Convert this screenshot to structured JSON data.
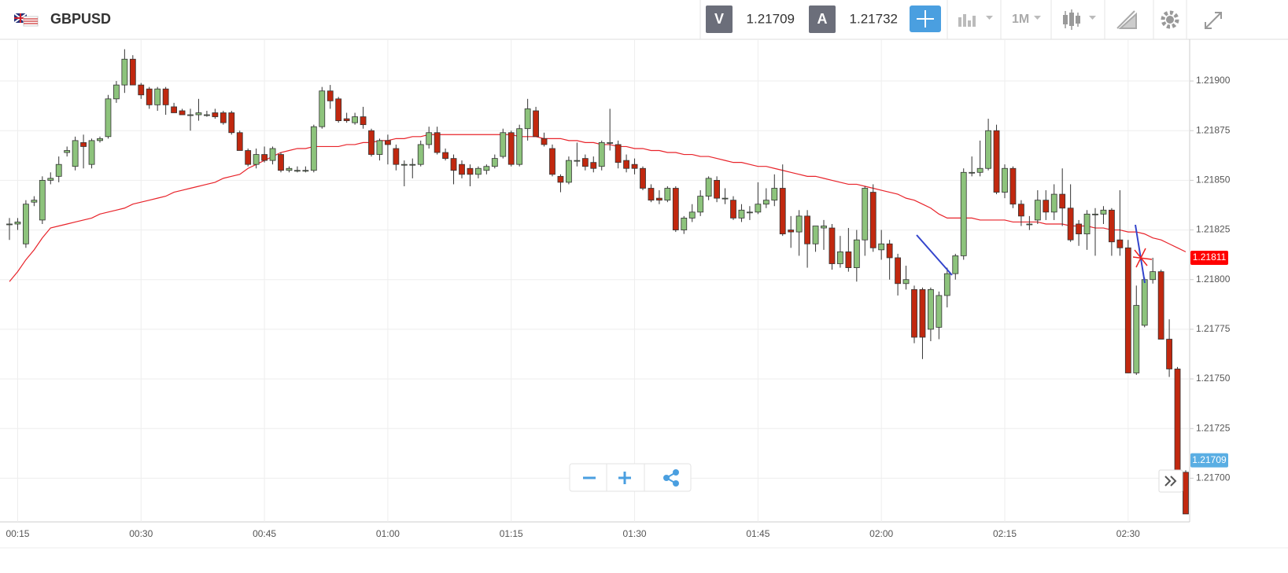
{
  "toolbar": {
    "symbol": "GBPUSD",
    "bid_label": "V",
    "bid": "1.21709",
    "ask_label": "A",
    "ask": "1.21732",
    "timeframe": "1M"
  },
  "chart_data": {
    "type": "candlestick",
    "categories": [
      null,
      "00:15",
      null,
      null,
      null,
      null,
      null,
      null,
      null,
      null,
      null,
      null,
      null,
      null,
      null,
      null,
      "00:30",
      null,
      null,
      null,
      null,
      null,
      null,
      null,
      null,
      null,
      null,
      null,
      null,
      null,
      null,
      "00:45",
      null,
      null,
      null,
      null,
      null,
      null,
      null,
      null,
      null,
      null,
      null,
      null,
      null,
      null,
      "01:00",
      null,
      null,
      null,
      null,
      null,
      null,
      null,
      null,
      null,
      null,
      null,
      null,
      null,
      null,
      "01:15",
      null,
      null,
      null,
      null,
      null,
      null,
      null,
      null,
      null,
      null,
      null,
      null,
      null,
      null,
      "01:30",
      null,
      null,
      null,
      null,
      null,
      null,
      null,
      null,
      null,
      null,
      null,
      null,
      null,
      null,
      "01:45",
      null,
      null,
      null,
      null,
      null,
      null,
      null,
      null,
      null,
      null,
      null,
      null,
      null,
      null,
      "02:00",
      null,
      null,
      null,
      null,
      null,
      null,
      null,
      null,
      null,
      null,
      null,
      null,
      null,
      null,
      "02:15",
      null,
      null,
      null,
      null,
      null,
      null,
      null,
      null,
      null,
      null,
      null,
      null,
      null,
      null,
      "02:30",
      null,
      null,
      null,
      null,
      null,
      null,
      null
    ],
    "open": [
      1.21828,
      1.21828,
      1.21818,
      1.21839,
      1.2183,
      1.2185,
      1.21852,
      1.21864,
      1.21857,
      1.21869,
      1.21858,
      1.2187,
      1.21872,
      1.21891,
      1.21898,
      1.21911,
      1.21898,
      1.21896,
      1.21888,
      1.21896,
      1.21887,
      1.21885,
      1.21883,
      1.21883,
      1.21883,
      1.21884,
      1.21884,
      1.21884,
      1.21874,
      1.21865,
      1.21858,
      1.21863,
      1.2186,
      1.21863,
      1.21855,
      1.21855,
      1.21855,
      1.21855,
      1.21877,
      1.21895,
      1.21891,
      1.21881,
      1.21879,
      1.21882,
      1.21875,
      1.21863,
      1.2187,
      1.21866,
      1.21858,
      1.21858,
      1.21858,
      1.21868,
      1.21874,
      1.21864,
      1.21861,
      1.21858,
      1.21856,
      1.21853,
      1.21855,
      1.21857,
      1.21862,
      1.21874,
      1.21858,
      1.21876,
      1.21885,
      1.21871,
      1.21866,
      1.21852,
      1.21849,
      1.2186,
      1.21861,
      1.21859,
      1.21857,
      1.21869,
      1.21868,
      1.2186,
      1.21858,
      1.21856,
      1.21846,
      1.21841,
      1.2184,
      1.21846,
      1.21825,
      1.21831,
      1.21834,
      1.21842,
      1.2185,
      1.21841,
      1.2184,
      1.21831,
      1.21834,
      1.21834,
      1.21838,
      1.2184,
      1.21846,
      1.21825,
      1.21824,
      1.21832,
      1.21818,
      1.21826,
      1.21826,
      1.21808,
      1.21814,
      1.21806,
      1.2182,
      1.21844,
      1.21815,
      1.21818,
      1.21811,
      1.21798,
      1.21795,
      1.21795,
      1.21775,
      1.21776,
      1.21792,
      1.21803,
      1.21812,
      1.21854,
      1.21854,
      1.21856,
      1.21875,
      1.21844,
      1.21856,
      1.21838,
      1.21828,
      1.2183,
      1.2184,
      1.21834,
      1.21843,
      1.21836,
      1.21828,
      1.21823,
      1.21833,
      1.21833,
      1.21835,
      1.2182,
      1.21816,
      1.21753,
      1.21777,
      1.218,
      1.21804,
      1.2177,
      1.21755,
      1.21703
    ],
    "high": [
      1.21831,
      1.21831,
      1.2184,
      1.21842,
      1.21852,
      1.21854,
      1.21862,
      1.21867,
      1.21872,
      1.21873,
      1.21871,
      1.21872,
      1.21893,
      1.219,
      1.21916,
      1.21913,
      1.21899,
      1.21897,
      1.21897,
      1.21897,
      1.21889,
      1.21886,
      1.21886,
      1.21891,
      1.21885,
      1.21886,
      1.21885,
      1.21885,
      1.21875,
      1.21866,
      1.21866,
      1.21867,
      1.21867,
      1.21864,
      1.21857,
      1.21857,
      1.21857,
      1.21878,
      1.21897,
      1.21898,
      1.21892,
      1.21884,
      1.21884,
      1.21887,
      1.21876,
      1.21871,
      1.21873,
      1.21868,
      1.2186,
      1.21861,
      1.2187,
      1.21877,
      1.21877,
      1.21866,
      1.21863,
      1.2186,
      1.21858,
      1.21857,
      1.21858,
      1.21863,
      1.21876,
      1.21875,
      1.21878,
      1.21891,
      1.21887,
      1.21874,
      1.21868,
      1.21853,
      1.21862,
      1.21869,
      1.21863,
      1.21862,
      1.2187,
      1.21886,
      1.2187,
      1.21863,
      1.21861,
      1.21857,
      1.21848,
      1.21845,
      1.21847,
      1.21847,
      1.21832,
      1.21838,
      1.21845,
      1.21852,
      1.21852,
      1.21846,
      1.21842,
      1.21838,
      1.21837,
      1.21849,
      1.21846,
      1.21853,
      1.21858,
      1.21832,
      1.21835,
      1.21835,
      1.21827,
      1.2183,
      1.21828,
      1.21822,
      1.21826,
      1.21825,
      1.21847,
      1.21848,
      1.21825,
      1.2182,
      1.21813,
      1.21807,
      1.21797,
      1.21796,
      1.21796,
      1.21794,
      1.21806,
      1.21813,
      1.21856,
      1.21862,
      1.2187,
      1.21881,
      1.21878,
      1.21858,
      1.21857,
      1.2184,
      1.21832,
      1.21845,
      1.21845,
      1.21848,
      1.21856,
      1.21848,
      1.2183,
      1.21835,
      1.21836,
      1.21837,
      1.21836,
      1.21845,
      1.2182,
      1.21797,
      1.21801,
      1.21811,
      1.21805,
      1.2178,
      1.21756,
      1.21704
    ],
    "low": [
      1.2182,
      1.21825,
      1.21816,
      1.21837,
      1.21828,
      1.21848,
      1.21849,
      1.21862,
      1.21855,
      1.21856,
      1.21856,
      1.21869,
      1.21871,
      1.21889,
      1.21894,
      1.21898,
      1.21891,
      1.21886,
      1.21885,
      1.21883,
      1.21884,
      1.21883,
      1.21875,
      1.2188,
      1.21882,
      1.21881,
      1.21878,
      1.21873,
      1.21865,
      1.21857,
      1.21856,
      1.21859,
      1.21858,
      1.21854,
      1.21854,
      1.21854,
      1.21854,
      1.21854,
      1.21876,
      1.21886,
      1.21879,
      1.21879,
      1.21878,
      1.21876,
      1.21862,
      1.2186,
      1.21858,
      1.21855,
      1.21847,
      1.21851,
      1.21857,
      1.21866,
      1.21863,
      1.2186,
      1.21848,
      1.21851,
      1.21847,
      1.21851,
      1.21853,
      1.21856,
      1.21861,
      1.21857,
      1.21857,
      1.2187,
      1.21872,
      1.21867,
      1.21852,
      1.21844,
      1.21848,
      1.21857,
      1.21855,
      1.21854,
      1.21855,
      1.21865,
      1.21856,
      1.21854,
      1.21853,
      1.21845,
      1.21839,
      1.21838,
      1.21839,
      1.21824,
      1.21823,
      1.21829,
      1.21832,
      1.2184,
      1.21839,
      1.21838,
      1.2183,
      1.21829,
      1.2183,
      1.21833,
      1.21836,
      1.21837,
      1.21822,
      1.21816,
      1.21812,
      1.21806,
      1.21814,
      1.21815,
      1.21805,
      1.21806,
      1.21804,
      1.21799,
      1.21812,
      1.21814,
      1.2181,
      1.218,
      1.21792,
      1.21795,
      1.21768,
      1.2176,
      1.21769,
      1.2177,
      1.21786,
      1.218,
      1.2181,
      1.21852,
      1.21852,
      1.21855,
      1.21843,
      1.21841,
      1.21836,
      1.21827,
      1.21825,
      1.21828,
      1.2183,
      1.2183,
      1.21827,
      1.21819,
      1.21817,
      1.21815,
      1.21812,
      1.21828,
      1.21812,
      1.21812,
      1.21753,
      1.21752,
      1.21776,
      1.21798,
      1.2177,
      1.21751,
      1.21703,
      1.21682
    ],
    "close": [
      1.21828,
      1.21829,
      1.21838,
      1.2184,
      1.2185,
      1.21851,
      1.21858,
      1.21865,
      1.2187,
      1.21867,
      1.2187,
      1.21871,
      1.21891,
      1.21898,
      1.21911,
      1.21898,
      1.21893,
      1.21888,
      1.21896,
      1.21888,
      1.21884,
      1.21883,
      1.21883,
      1.21884,
      1.21883,
      1.21882,
      1.21879,
      1.21874,
      1.21865,
      1.21858,
      1.21863,
      1.2186,
      1.21866,
      1.21855,
      1.21856,
      1.21855,
      1.21855,
      1.21877,
      1.21895,
      1.2189,
      1.2188,
      1.2188,
      1.21882,
      1.21878,
      1.21863,
      1.2187,
      1.21868,
      1.21858,
      1.21858,
      1.21858,
      1.21868,
      1.21874,
      1.21864,
      1.21861,
      1.21855,
      1.21853,
      1.21853,
      1.21856,
      1.21857,
      1.21861,
      1.21874,
      1.21858,
      1.21876,
      1.21886,
      1.21872,
      1.21868,
      1.21853,
      1.21849,
      1.2186,
      1.2186,
      1.21857,
      1.21856,
      1.21869,
      1.21869,
      1.21859,
      1.21856,
      1.21856,
      1.21846,
      1.2184,
      1.2184,
      1.21846,
      1.21825,
      1.21831,
      1.21834,
      1.21842,
      1.21851,
      1.21841,
      1.21841,
      1.21831,
      1.21835,
      1.21834,
      1.21838,
      1.2184,
      1.21846,
      1.21823,
      1.21824,
      1.21832,
      1.21818,
      1.21827,
      1.21827,
      1.21808,
      1.21814,
      1.21806,
      1.2182,
      1.21846,
      1.21816,
      1.21818,
      1.21811,
      1.21798,
      1.218,
      1.21771,
      1.21771,
      1.21795,
      1.21792,
      1.21803,
      1.21812,
      1.21854,
      1.21854,
      1.21856,
      1.21875,
      1.21844,
      1.21856,
      1.21838,
      1.21832,
      1.21828,
      1.2184,
      1.21834,
      1.21843,
      1.21836,
      1.2182,
      1.21823,
      1.21833,
      1.21833,
      1.21835,
      1.21819,
      1.21816,
      1.21753,
      1.21787,
      1.218,
      1.21804,
      1.2177,
      1.21755,
      1.21703,
      1.21682
    ],
    "up_color": "#8dc37c",
    "down_color": "#c1280f",
    "moving_average": {
      "color": "#e8232a",
      "values": [
        1.21799,
        1.21804,
        1.2181,
        1.21815,
        1.21821,
        1.21826,
        1.21827,
        1.21828,
        1.21829,
        1.2183,
        1.21831,
        1.21833,
        1.21834,
        1.21835,
        1.21836,
        1.21838,
        1.21839,
        1.2184,
        1.21841,
        1.21842,
        1.21844,
        1.21845,
        1.21846,
        1.21847,
        1.21848,
        1.21849,
        1.21851,
        1.21852,
        1.21853,
        1.21856,
        1.21858,
        1.2186,
        1.21862,
        1.21864,
        1.21865,
        1.21866,
        1.21866,
        1.21867,
        1.21867,
        1.21867,
        1.21867,
        1.21868,
        1.21868,
        1.21869,
        1.21869,
        1.2187,
        1.2187,
        1.21871,
        1.21871,
        1.21872,
        1.21872,
        1.21873,
        1.21873,
        1.21873,
        1.21873,
        1.21873,
        1.21873,
        1.21873,
        1.21873,
        1.21873,
        1.21873,
        1.21873,
        1.21872,
        1.21872,
        1.21872,
        1.21871,
        1.21871,
        1.21871,
        1.2187,
        1.2187,
        1.21869,
        1.21869,
        1.21868,
        1.21868,
        1.21867,
        1.21867,
        1.21866,
        1.21866,
        1.21865,
        1.21865,
        1.21864,
        1.21864,
        1.21863,
        1.21863,
        1.21862,
        1.21862,
        1.21861,
        1.2186,
        1.21859,
        1.21859,
        1.21858,
        1.21857,
        1.21857,
        1.21856,
        1.21855,
        1.21854,
        1.21853,
        1.21852,
        1.21852,
        1.21851,
        1.2185,
        1.21849,
        1.21848,
        1.21848,
        1.21847,
        1.21846,
        1.21845,
        1.21844,
        1.21843,
        1.21841,
        1.2184,
        1.21838,
        1.21836,
        1.21833,
        1.21831,
        1.21831,
        1.21831,
        1.21831,
        1.2183,
        1.2183,
        1.2183,
        1.2183,
        1.21829,
        1.21829,
        1.21829,
        1.21829,
        1.21828,
        1.21828,
        1.21828,
        1.21827,
        1.21827,
        1.21827,
        1.21826,
        1.21826,
        1.21825,
        1.21825,
        1.21824,
        1.21824,
        1.21823,
        1.21821,
        1.2182,
        1.21818,
        1.21816,
        1.21814
      ]
    },
    "ylim": [
      1.21678,
      1.21921
    ],
    "yticks": [
      {
        "value": 1.217,
        "label": "1.21700"
      },
      {
        "value": 1.21725,
        "label": "1.21725"
      },
      {
        "value": 1.2175,
        "label": "1.21750"
      },
      {
        "value": 1.21775,
        "label": "1.21775"
      },
      {
        "value": 1.218,
        "label": "1.21800"
      },
      {
        "value": 1.21825,
        "label": "1.21825"
      },
      {
        "value": 1.2185,
        "label": "1.21850"
      },
      {
        "value": 1.21875,
        "label": "1.21875"
      },
      {
        "value": 1.219,
        "label": "1.21900"
      }
    ],
    "grid": true,
    "price_tags": [
      {
        "value": 1.21811,
        "label": "1.21811",
        "color": "#ff0000"
      },
      {
        "value": 1.21709,
        "label": "1.21709",
        "color": "#5aaee3"
      }
    ]
  }
}
